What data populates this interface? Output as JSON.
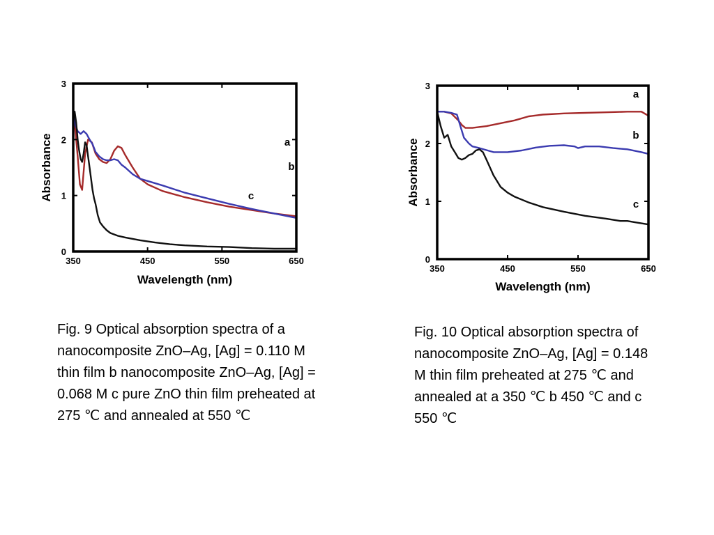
{
  "colors": {
    "a": "#a52a2a",
    "b": "#3b3bb0",
    "c": "#111111"
  },
  "chart_data": [
    {
      "type": "line",
      "xlabel": "Wavelength (nm)",
      "ylabel": "Absorbance",
      "xlim": [
        350,
        650
      ],
      "ylim": [
        0,
        3
      ],
      "xticks": [
        "350",
        "450",
        "550",
        "650"
      ],
      "yticks": [
        "0",
        "1",
        "2",
        "3"
      ],
      "grid": false,
      "series": [
        {
          "name": "a",
          "x": [
            350,
            353,
            356,
            359,
            362,
            366,
            370,
            375,
            380,
            385,
            390,
            395,
            400,
            405,
            410,
            415,
            420,
            430,
            440,
            450,
            470,
            500,
            530,
            560,
            590,
            620,
            650
          ],
          "y": [
            2.45,
            2.15,
            1.7,
            1.2,
            1.1,
            1.75,
            2.0,
            1.95,
            1.75,
            1.65,
            1.6,
            1.58,
            1.65,
            1.8,
            1.88,
            1.85,
            1.72,
            1.5,
            1.3,
            1.2,
            1.08,
            0.97,
            0.88,
            0.8,
            0.74,
            0.68,
            0.63
          ],
          "label": "a"
        },
        {
          "name": "b",
          "x": [
            350,
            353,
            356,
            360,
            364,
            368,
            372,
            376,
            380,
            385,
            390,
            395,
            400,
            405,
            410,
            415,
            420,
            430,
            440,
            450,
            470,
            500,
            530,
            560,
            590,
            620,
            650
          ],
          "y": [
            2.45,
            2.25,
            2.15,
            2.1,
            2.15,
            2.1,
            2.0,
            1.92,
            1.78,
            1.7,
            1.65,
            1.63,
            1.63,
            1.65,
            1.63,
            1.55,
            1.5,
            1.38,
            1.3,
            1.26,
            1.18,
            1.05,
            0.95,
            0.85,
            0.76,
            0.68,
            0.6
          ],
          "label": "b"
        },
        {
          "name": "c",
          "x": [
            350,
            352,
            354,
            356,
            358,
            360,
            362,
            364,
            366,
            368,
            370,
            372,
            374,
            376,
            378,
            380,
            383,
            386,
            390,
            395,
            400,
            410,
            420,
            440,
            460,
            480,
            500,
            530,
            560,
            590,
            620,
            650
          ],
          "y": [
            2.3,
            2.5,
            2.3,
            2.0,
            1.8,
            1.65,
            1.6,
            1.75,
            1.95,
            1.9,
            1.7,
            1.5,
            1.3,
            1.1,
            0.95,
            0.85,
            0.65,
            0.52,
            0.45,
            0.38,
            0.33,
            0.28,
            0.25,
            0.2,
            0.16,
            0.13,
            0.11,
            0.09,
            0.08,
            0.06,
            0.05,
            0.05
          ],
          "label": "c"
        }
      ]
    },
    {
      "type": "line",
      "xlabel": "Wavelength (nm)",
      "ylabel": "Absorbance",
      "xlim": [
        350,
        650
      ],
      "ylim": [
        0,
        3
      ],
      "xticks": [
        "350",
        "450",
        "550",
        "650"
      ],
      "yticks": [
        "0",
        "1",
        "2",
        "3"
      ],
      "grid": false,
      "series": [
        {
          "name": "a",
          "x": [
            350,
            360,
            370,
            380,
            385,
            390,
            400,
            420,
            440,
            460,
            480,
            500,
            530,
            560,
            590,
            620,
            640,
            650
          ],
          "y": [
            2.55,
            2.55,
            2.52,
            2.4,
            2.32,
            2.27,
            2.27,
            2.3,
            2.35,
            2.4,
            2.47,
            2.5,
            2.52,
            2.53,
            2.54,
            2.55,
            2.55,
            2.48
          ],
          "label": "a"
        },
        {
          "name": "b",
          "x": [
            350,
            360,
            370,
            378,
            383,
            388,
            395,
            400,
            410,
            430,
            450,
            470,
            490,
            510,
            530,
            545,
            550,
            560,
            580,
            600,
            620,
            640,
            650
          ],
          "y": [
            2.55,
            2.55,
            2.53,
            2.5,
            2.3,
            2.1,
            2.0,
            1.95,
            1.92,
            1.85,
            1.85,
            1.88,
            1.93,
            1.96,
            1.97,
            1.95,
            1.92,
            1.95,
            1.95,
            1.92,
            1.9,
            1.85,
            1.82
          ],
          "label": "b"
        },
        {
          "name": "c",
          "x": [
            350,
            355,
            360,
            365,
            370,
            375,
            380,
            385,
            390,
            395,
            400,
            405,
            410,
            415,
            420,
            430,
            440,
            450,
            460,
            480,
            500,
            530,
            560,
            590,
            610,
            620,
            630,
            650
          ],
          "y": [
            2.55,
            2.3,
            2.1,
            2.15,
            1.95,
            1.85,
            1.75,
            1.72,
            1.75,
            1.8,
            1.82,
            1.88,
            1.9,
            1.85,
            1.72,
            1.45,
            1.25,
            1.15,
            1.08,
            0.98,
            0.9,
            0.82,
            0.75,
            0.7,
            0.66,
            0.66,
            0.64,
            0.6
          ],
          "label": "c"
        }
      ]
    }
  ],
  "captions": [
    "Fig. 9 Optical absorption spectra of a nanocomposite ZnO–Ag, [Ag] = 0.110 M thin film b nanocomposite ZnO–Ag, [Ag] = 0.068 M c pure ZnO thin film preheated at 275 ℃ and annealed at 550 ℃",
    "Fig. 10 Optical absorption spectra of nanocomposite ZnO–Ag, [Ag] = 0.148 M thin film preheated at 275 ℃ and annealed at a 350 ℃ b 450 ℃ and c 550 ℃"
  ]
}
